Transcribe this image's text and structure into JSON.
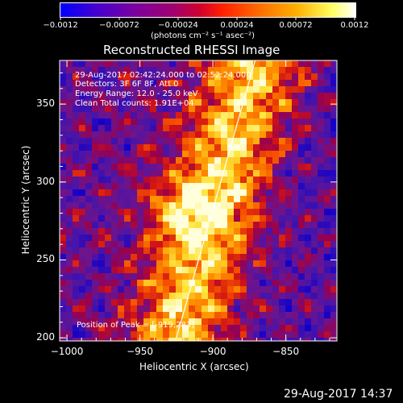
{
  "chart_data": {
    "type": "heatmap",
    "title": "Reconstructed RHESSI Image",
    "xlabel": "Heliocentric X (arcsec)",
    "ylabel": "Heliocentric Y (arcsec)",
    "xlim": [
      -1005,
      -815
    ],
    "ylim": [
      198,
      378
    ],
    "x_ticks": [
      -1000,
      -950,
      -900,
      -850
    ],
    "y_ticks": [
      200,
      250,
      300,
      350
    ],
    "x_tick_labels": [
      "−1000",
      "−950",
      "−900",
      "−850"
    ],
    "y_tick_labels": [
      "200",
      "250",
      "300",
      "350"
    ],
    "colorbar": {
      "min": -0.0012,
      "max": 0.0012,
      "tick_values": [
        -0.0012,
        -0.00072,
        -0.00024,
        0.00024,
        0.00072,
        0.0012
      ],
      "tick_labels": [
        "−0.0012",
        "−0.00072",
        "−0.00024",
        "0.00024",
        "0.00072",
        "0.0012"
      ],
      "unit_label": "(photons cm⁻² s⁻¹ asec⁻²)",
      "colors": [
        "#0000ff",
        "#6a00b0",
        "#a00060",
        "#ff0000",
        "#ff9900",
        "#ffff80",
        "#ffffff"
      ]
    },
    "limb_line": {
      "points": [
        [
          -925,
          200
        ],
        [
          -871,
          378
        ]
      ]
    },
    "peak": {
      "x": -919,
      "y": 283
    },
    "annotations": [
      "29-Aug-2017 02:42:24.000 to 02:52:24.000",
      "Detectors: 3F 6F 8F, Att 0",
      "Energy Range: 12.0 - 25.0 keV",
      "Clean      Total counts: 1.91E+04"
    ],
    "peak_label": "Position of Peak = [-919,283]"
  },
  "timestamp": "29-Aug-2017 14:37"
}
